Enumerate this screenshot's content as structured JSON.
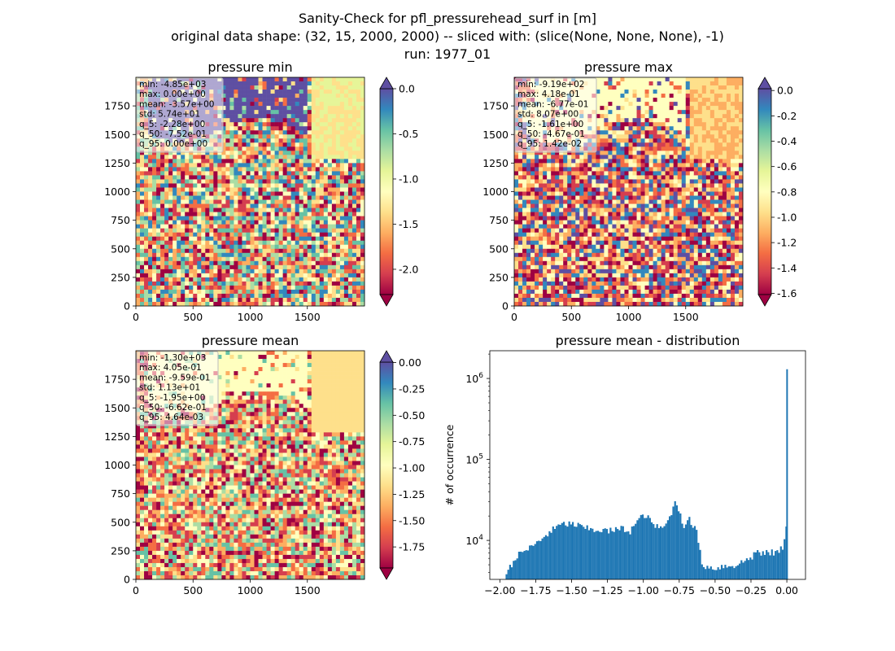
{
  "figure": {
    "title_line1": "Sanity-Check for pfl_pressurehead_surf in [m]",
    "title_line2": "original data shape: (32, 15, 2000, 2000) -- sliced with: (slice(None, None, None), -1)",
    "title_line3": "run: 1977_01"
  },
  "chart_data": [
    {
      "type": "heatmap",
      "title": "pressure min",
      "x_ticks": [
        "0",
        "500",
        "1000",
        "1500"
      ],
      "y_ticks": [
        "0",
        "250",
        "500",
        "750",
        "1000",
        "1250",
        "1500",
        "1750"
      ],
      "xlim": [
        0,
        2000
      ],
      "ylim": [
        0,
        2000
      ],
      "colormap": "Spectral",
      "colorbar_range": [
        -2.28,
        0.0
      ],
      "colorbar_ticks": [
        "0.0",
        "-0.5",
        "-1.0",
        "-1.5",
        "-2.0"
      ],
      "colorbar_tick_values": [
        0.0,
        -0.5,
        -1.0,
        -1.5,
        -2.0
      ],
      "colorbar_extend": "both",
      "stats": [
        "min: -4.85e+03",
        "max: 0.00e+00",
        "mean: -3.57e+00",
        "std: 5.74e+01",
        "q_5: -2.28e+00",
        "q_50: -7.52e-01",
        "q_95: 0.00e+00"
      ]
    },
    {
      "type": "heatmap",
      "title": "pressure max",
      "x_ticks": [
        "0",
        "500",
        "1000",
        "1500"
      ],
      "y_ticks": [
        "0",
        "250",
        "500",
        "750",
        "1000",
        "1250",
        "1500",
        "1750"
      ],
      "xlim": [
        0,
        2000
      ],
      "ylim": [
        0,
        2000
      ],
      "colormap": "Spectral",
      "colorbar_range": [
        -1.61,
        0.0142
      ],
      "colorbar_ticks": [
        "0.0",
        "-0.2",
        "-0.4",
        "-0.6",
        "-0.8",
        "-1.0",
        "-1.2",
        "-1.4",
        "-1.6"
      ],
      "colorbar_tick_values": [
        0.0,
        -0.2,
        -0.4,
        -0.6,
        -0.8,
        -1.0,
        -1.2,
        -1.4,
        -1.6
      ],
      "colorbar_extend": "both",
      "stats": [
        "min: -9.19e+02",
        "max: 4.18e-01",
        "mean: -6.77e-01",
        "std: 8.07e+00",
        "q_5: -1.61e+00",
        "q_50: -4.67e-01",
        "q_95: 1.42e-02"
      ]
    },
    {
      "type": "heatmap",
      "title": "pressure mean",
      "x_ticks": [
        "0",
        "500",
        "1000",
        "1500"
      ],
      "y_ticks": [
        "0",
        "250",
        "500",
        "750",
        "1000",
        "1250",
        "1500",
        "1750"
      ],
      "xlim": [
        0,
        2000
      ],
      "ylim": [
        0,
        2000
      ],
      "colormap": "Spectral",
      "colorbar_range": [
        -1.95,
        0.00464
      ],
      "colorbar_ticks": [
        "0.00",
        "-0.25",
        "-0.50",
        "-0.75",
        "-1.00",
        "-1.25",
        "-1.50",
        "-1.75"
      ],
      "colorbar_tick_values": [
        0.0,
        -0.25,
        -0.5,
        -0.75,
        -1.0,
        -1.25,
        -1.5,
        -1.75
      ],
      "colorbar_extend": "both",
      "stats": [
        "min: -1.30e+03",
        "max: 4.05e-01",
        "mean: -9.59e-01",
        "std: 1.13e+01",
        "q_5: -1.95e+00",
        "q_50: -6.62e-01",
        "q_95: 4.64e-03"
      ]
    },
    {
      "type": "bar",
      "title": "pressure mean - distribution",
      "ylabel": "# of occurrence",
      "xlabel": "",
      "yscale": "log",
      "xlim": [
        -2.07,
        0.13
      ],
      "ylim": [
        3300,
        2200000
      ],
      "x_ticks": [
        "−2.00",
        "−1.75",
        "−1.50",
        "−1.25",
        "−1.00",
        "−0.75",
        "−0.50",
        "−0.25",
        "0.00"
      ],
      "x_tick_values": [
        -2.0,
        -1.75,
        -1.5,
        -1.25,
        -1.0,
        -0.75,
        -0.5,
        -0.25,
        0.0
      ],
      "y_ticks": [
        "10^4",
        "10^5",
        "10^6"
      ],
      "y_tick_values": [
        10000,
        100000,
        1000000
      ],
      "bar_color": "#1f77b4",
      "bins": [
        [
          -1.95,
          4300
        ],
        [
          -1.9,
          6000
        ],
        [
          -1.85,
          7200
        ],
        [
          -1.8,
          8000
        ],
        [
          -1.75,
          9200
        ],
        [
          -1.7,
          11000
        ],
        [
          -1.65,
          13000
        ],
        [
          -1.6,
          15000
        ],
        [
          -1.55,
          16000
        ],
        [
          -1.5,
          16000
        ],
        [
          -1.45,
          15000
        ],
        [
          -1.4,
          14000
        ],
        [
          -1.35,
          13500
        ],
        [
          -1.3,
          13500
        ],
        [
          -1.25,
          13000
        ],
        [
          -1.2,
          13500
        ],
        [
          -1.15,
          14000
        ],
        [
          -1.1,
          13000
        ],
        [
          -1.05,
          17000
        ],
        [
          -1.0,
          21000
        ],
        [
          -0.95,
          17000
        ],
        [
          -0.9,
          14000
        ],
        [
          -0.85,
          15000
        ],
        [
          -0.8,
          25000
        ],
        [
          -0.78,
          30000
        ],
        [
          -0.75,
          22000
        ],
        [
          -0.72,
          14000
        ],
        [
          -0.7,
          20000
        ],
        [
          -0.66,
          15000
        ],
        [
          -0.63,
          12500
        ],
        [
          -0.6,
          5200
        ],
        [
          -0.55,
          4600
        ],
        [
          -0.5,
          4600
        ],
        [
          -0.45,
          4800
        ],
        [
          -0.4,
          4900
        ],
        [
          -0.35,
          5000
        ],
        [
          -0.3,
          5600
        ],
        [
          -0.25,
          6200
        ],
        [
          -0.22,
          7500
        ],
        [
          -0.18,
          6600
        ],
        [
          -0.14,
          7200
        ],
        [
          -0.1,
          7000
        ],
        [
          -0.06,
          7300
        ],
        [
          -0.03,
          8500
        ],
        [
          -0.01,
          16000
        ],
        [
          0.0,
          1300000
        ]
      ]
    }
  ]
}
